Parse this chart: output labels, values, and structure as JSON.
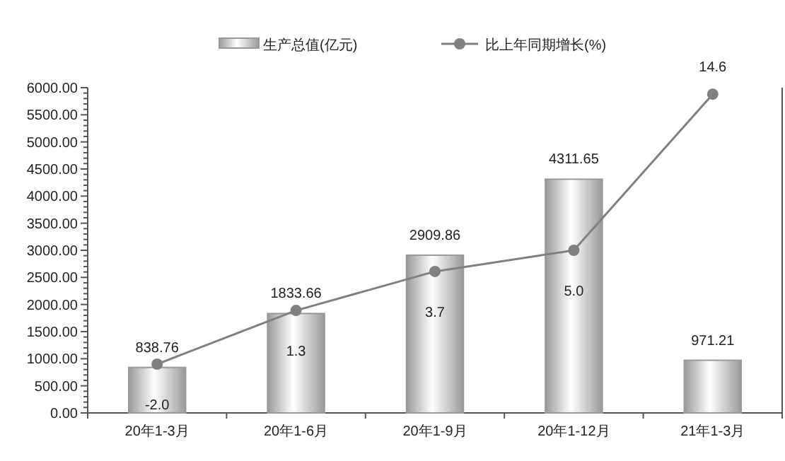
{
  "chart_data": {
    "type": "bar",
    "categories": [
      "20年1-3月",
      "20年1-6月",
      "20年1-9月",
      "20年1-12月",
      "21年1-3月"
    ],
    "series": [
      {
        "name": "生产总值(亿元)",
        "color": "#999999",
        "values": [
          838.76,
          1833.66,
          2909.86,
          4311.65,
          971.21
        ]
      },
      {
        "name": "比上年同期增长(%)",
        "type": "line",
        "axis": "y2",
        "color": "#808080",
        "marker": "circle",
        "values": [
          -2.0,
          1.3,
          3.7,
          5.0,
          14.6
        ],
        "value_labels": [
          "-2.0",
          "1.3",
          "3.7",
          "5.0",
          "14.6"
        ]
      }
    ],
    "ylim": [
      0,
      6000
    ],
    "yticks": [
      {
        "value": 0,
        "label": "0.00"
      },
      {
        "value": 500,
        "label": "500.00"
      },
      {
        "value": 1000,
        "label": "1000.00"
      },
      {
        "value": 1500,
        "label": "1500.00"
      },
      {
        "value": 2000,
        "label": "2000.00"
      },
      {
        "value": 2500,
        "label": "2500.00"
      },
      {
        "value": 3000,
        "label": "3000.00"
      },
      {
        "value": 3500,
        "label": "3500.00"
      },
      {
        "value": 4000,
        "label": "4000.00"
      },
      {
        "value": 4500,
        "label": "4500.00"
      },
      {
        "value": 5000,
        "label": "5000.00"
      },
      {
        "value": 5500,
        "label": "5500.00"
      },
      {
        "value": 6000,
        "label": "6000.00"
      }
    ],
    "y2lim": [
      -5,
      15
    ],
    "tick_labels": "y",
    "data_labels": true,
    "legend": "top",
    "grid": false
  }
}
